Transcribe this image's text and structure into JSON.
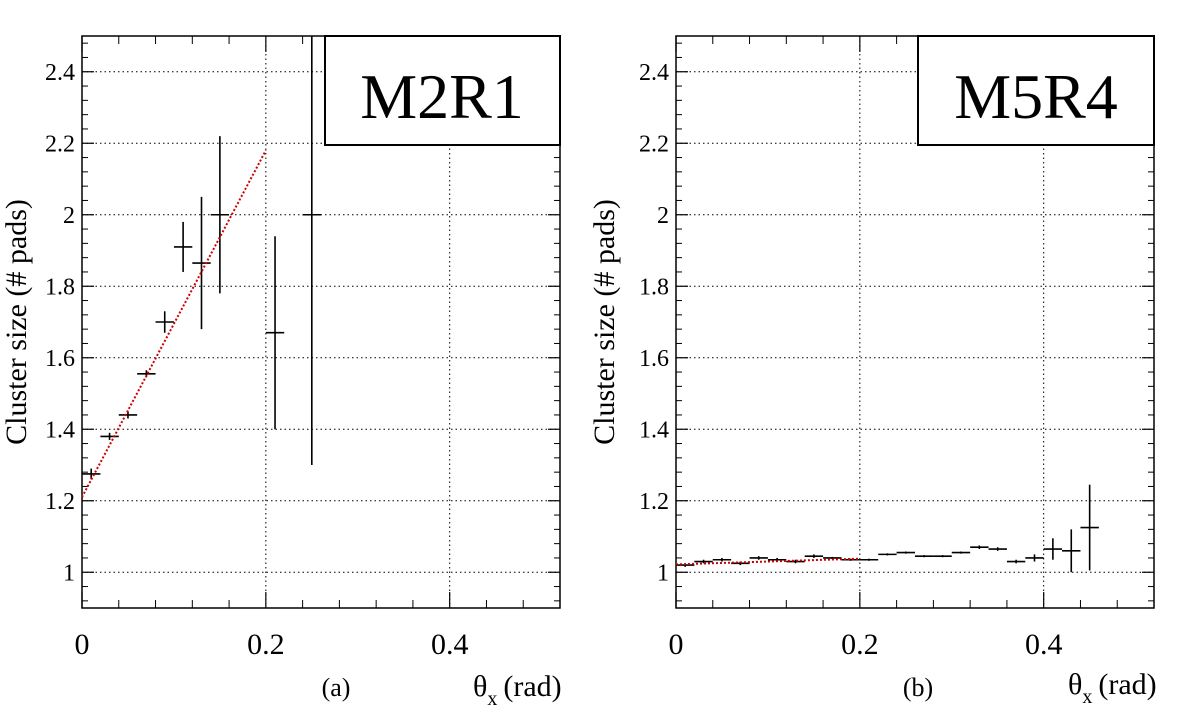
{
  "chart_data": [
    {
      "type": "scatter",
      "title": "M2R1",
      "panel_label": "(a)",
      "xlabel": "θx (rad)",
      "xlabel_symbol": "θ",
      "xlabel_sub": "x",
      "xlabel_unit": "(rad)",
      "ylabel": "Cluster size   (# pads)",
      "xlim": [
        0,
        0.52
      ],
      "ylim": [
        0.9,
        2.5
      ],
      "xticks": [
        "0",
        "0.2",
        "0.4"
      ],
      "yticks": [
        "1",
        "1.2",
        "1.4",
        "1.6",
        "1.8",
        "2",
        "2.2",
        "2.4"
      ],
      "grid": true,
      "legend_position": "top-right",
      "points": [
        {
          "x": 0.01,
          "y": 1.275,
          "xerr": 0.01,
          "yerr": 0.015
        },
        {
          "x": 0.03,
          "y": 1.38,
          "xerr": 0.01,
          "yerr": 0.01
        },
        {
          "x": 0.05,
          "y": 1.44,
          "xerr": 0.01,
          "yerr": 0.01
        },
        {
          "x": 0.07,
          "y": 1.555,
          "xerr": 0.01,
          "yerr": 0.01
        },
        {
          "x": 0.09,
          "y": 1.7,
          "xerr": 0.01,
          "yerr": 0.03
        },
        {
          "x": 0.11,
          "y": 1.91,
          "xerr": 0.01,
          "yerr": 0.07
        },
        {
          "x": 0.13,
          "y": 1.865,
          "xerr": 0.01,
          "yerr": 0.185
        },
        {
          "x": 0.15,
          "y": 2.0,
          "xerr": 0.01,
          "yerr": 0.22
        },
        {
          "x": 0.21,
          "y": 1.67,
          "xerr": 0.01,
          "yerr": 0.27
        },
        {
          "x": 0.25,
          "y": 2.0,
          "xerr": 0.01,
          "yerr": 0.7
        }
      ],
      "fit": {
        "x_start": 0.0,
        "x_end": 0.2,
        "y_start": 1.21,
        "y_end": 2.18,
        "color": "#cc0000"
      }
    },
    {
      "type": "scatter",
      "title": "M5R4",
      "panel_label": "(b)",
      "xlabel": "θx (rad)",
      "xlabel_symbol": "θ",
      "xlabel_sub": "x",
      "xlabel_unit": "(rad)",
      "ylabel": "Cluster size   (# pads)",
      "xlim": [
        0,
        0.52
      ],
      "ylim": [
        0.9,
        2.5
      ],
      "xticks": [
        "0",
        "0.2",
        "0.4"
      ],
      "yticks": [
        "1",
        "1.2",
        "1.4",
        "1.6",
        "1.8",
        "2",
        "2.2",
        "2.4"
      ],
      "grid": true,
      "legend_position": "top-right",
      "points": [
        {
          "x": 0.01,
          "y": 1.02,
          "xerr": 0.01,
          "yerr": 0.005
        },
        {
          "x": 0.03,
          "y": 1.03,
          "xerr": 0.01,
          "yerr": 0.005
        },
        {
          "x": 0.05,
          "y": 1.035,
          "xerr": 0.01,
          "yerr": 0.005
        },
        {
          "x": 0.07,
          "y": 1.025,
          "xerr": 0.01,
          "yerr": 0.005
        },
        {
          "x": 0.09,
          "y": 1.04,
          "xerr": 0.01,
          "yerr": 0.005
        },
        {
          "x": 0.11,
          "y": 1.035,
          "xerr": 0.01,
          "yerr": 0.005
        },
        {
          "x": 0.13,
          "y": 1.03,
          "xerr": 0.01,
          "yerr": 0.005
        },
        {
          "x": 0.15,
          "y": 1.045,
          "xerr": 0.01,
          "yerr": 0.005
        },
        {
          "x": 0.17,
          "y": 1.04,
          "xerr": 0.01,
          "yerr": 0.003
        },
        {
          "x": 0.19,
          "y": 1.035,
          "xerr": 0.01,
          "yerr": 0.003
        },
        {
          "x": 0.21,
          "y": 1.035,
          "xerr": 0.01,
          "yerr": 0.003
        },
        {
          "x": 0.23,
          "y": 1.05,
          "xerr": 0.01,
          "yerr": 0.003
        },
        {
          "x": 0.25,
          "y": 1.055,
          "xerr": 0.01,
          "yerr": 0.003
        },
        {
          "x": 0.27,
          "y": 1.045,
          "xerr": 0.01,
          "yerr": 0.003
        },
        {
          "x": 0.29,
          "y": 1.045,
          "xerr": 0.01,
          "yerr": 0.003
        },
        {
          "x": 0.31,
          "y": 1.055,
          "xerr": 0.01,
          "yerr": 0.003
        },
        {
          "x": 0.33,
          "y": 1.07,
          "xerr": 0.01,
          "yerr": 0.005
        },
        {
          "x": 0.35,
          "y": 1.065,
          "xerr": 0.01,
          "yerr": 0.005
        },
        {
          "x": 0.37,
          "y": 1.03,
          "xerr": 0.01,
          "yerr": 0.005
        },
        {
          "x": 0.39,
          "y": 1.04,
          "xerr": 0.01,
          "yerr": 0.01
        },
        {
          "x": 0.41,
          "y": 1.065,
          "xerr": 0.01,
          "yerr": 0.03
        },
        {
          "x": 0.43,
          "y": 1.06,
          "xerr": 0.01,
          "yerr": 0.06
        },
        {
          "x": 0.45,
          "y": 1.125,
          "xerr": 0.01,
          "yerr": 0.12
        }
      ],
      "fit": {
        "x_start": 0.0,
        "x_end": 0.2,
        "y_start": 1.022,
        "y_end": 1.038,
        "color": "#cc0000"
      }
    }
  ]
}
